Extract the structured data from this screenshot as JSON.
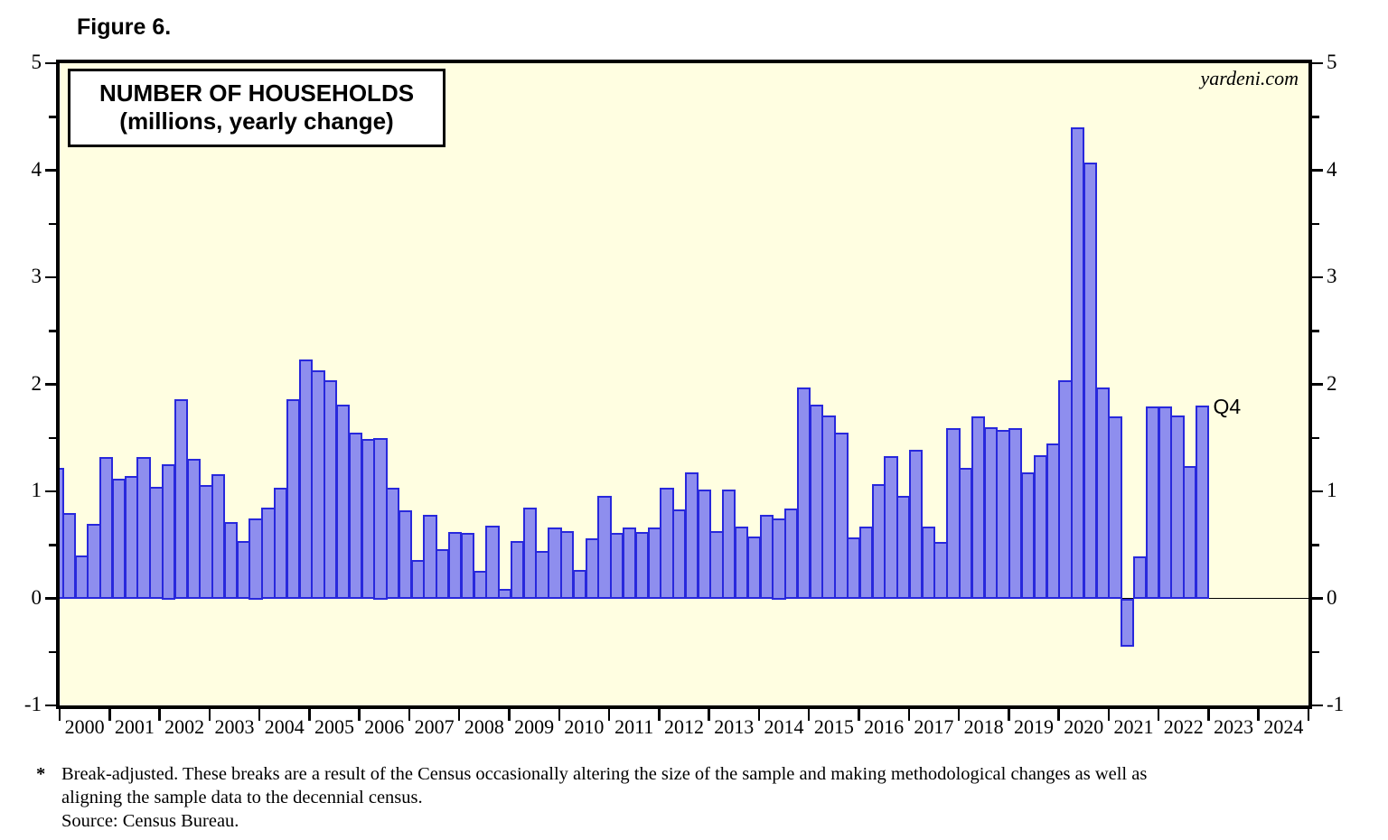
{
  "page": {
    "figure_label": "Figure 6."
  },
  "chart": {
    "title_line1": "NUMBER OF HOUSEHOLDS",
    "title_line2": "(millions, yearly change)",
    "watermark": "yardeni.com",
    "last_point_label": "Q4",
    "colors": {
      "plot_bg": "#fffee1",
      "bar_fill": "#8e8eee",
      "bar_border": "#2828dc",
      "frame": "#000000"
    }
  },
  "chart_data": {
    "type": "bar",
    "title": "NUMBER OF HOUSEHOLDS (millions, yearly change)",
    "ylabel": "millions, yearly change",
    "frequency": "quarterly",
    "ylim": [
      -1,
      5
    ],
    "y_major_ticks": [
      -1,
      0,
      1,
      2,
      3,
      4,
      5
    ],
    "y_minor_step": 0.5,
    "grid": false,
    "legend": "none",
    "x_year_labels": [
      "2000",
      "2001",
      "2002",
      "2003",
      "2004",
      "2005",
      "2006",
      "2007",
      "2008",
      "2009",
      "2010",
      "2011",
      "2012",
      "2013",
      "2014",
      "2015",
      "2016",
      "2017",
      "2018",
      "2019",
      "2020",
      "2021",
      "2022",
      "2023",
      "2024"
    ],
    "years_with_data": [
      "2000",
      "2001",
      "2002",
      "2003",
      "2004",
      "2005",
      "2006",
      "2007",
      "2008",
      "2009",
      "2010",
      "2011",
      "2012",
      "2013",
      "2014",
      "2015",
      "2016",
      "2017",
      "2018",
      "2019",
      "2020",
      "2021",
      "2022"
    ],
    "partial_first_bar": {
      "period": "1999 Q4 (clipped at left axis)",
      "value": 1.22
    },
    "series": [
      {
        "year": 2000,
        "values": [
          0.8,
          0.4,
          0.7,
          1.32
        ]
      },
      {
        "year": 2001,
        "values": [
          1.12,
          1.14,
          1.32,
          1.04
        ]
      },
      {
        "year": 2002,
        "values": [
          1.25,
          1.86,
          1.3,
          1.06
        ]
      },
      {
        "year": 2003,
        "values": [
          1.16,
          0.71,
          0.54,
          0.75
        ]
      },
      {
        "year": 2004,
        "values": [
          0.85,
          1.03,
          1.86,
          2.23
        ]
      },
      {
        "year": 2005,
        "values": [
          2.13,
          2.04,
          1.81,
          1.55
        ]
      },
      {
        "year": 2006,
        "values": [
          1.49,
          1.5,
          1.03,
          0.82
        ]
      },
      {
        "year": 2007,
        "values": [
          0.36,
          0.78,
          0.46,
          0.62
        ]
      },
      {
        "year": 2008,
        "values": [
          0.61,
          0.26,
          0.68,
          0.09
        ]
      },
      {
        "year": 2009,
        "values": [
          0.54,
          0.85,
          0.44,
          0.66
        ]
      },
      {
        "year": 2010,
        "values": [
          0.63,
          0.27,
          0.56,
          0.96
        ]
      },
      {
        "year": 2011,
        "values": [
          0.61,
          0.66,
          0.62,
          0.66
        ]
      },
      {
        "year": 2012,
        "values": [
          1.03,
          0.83,
          1.18,
          1.02
        ]
      },
      {
        "year": 2013,
        "values": [
          0.63,
          1.02,
          0.67,
          0.58
        ]
      },
      {
        "year": 2014,
        "values": [
          0.78,
          0.75,
          0.84,
          1.97
        ]
      },
      {
        "year": 2015,
        "values": [
          1.81,
          1.71,
          1.55,
          0.57
        ]
      },
      {
        "year": 2016,
        "values": [
          0.67,
          1.07,
          1.33,
          0.96
        ]
      },
      {
        "year": 2017,
        "values": [
          1.39,
          0.67,
          0.53,
          1.59
        ]
      },
      {
        "year": 2018,
        "values": [
          1.22,
          1.7,
          1.6,
          1.57
        ]
      },
      {
        "year": 2019,
        "values": [
          1.59,
          1.18,
          1.34,
          1.45
        ]
      },
      {
        "year": 2020,
        "values": [
          2.04,
          4.4,
          4.07,
          1.97
        ]
      },
      {
        "year": 2021,
        "values": [
          1.7,
          -0.45,
          0.39,
          1.79
        ]
      },
      {
        "year": 2022,
        "values": [
          1.79,
          1.71,
          1.24,
          1.8
        ]
      }
    ],
    "annotation": {
      "text": "Q4",
      "period": "2022 Q4",
      "value": 1.8
    }
  },
  "footnote": {
    "marker": "*",
    "line1": "Break-adjusted. These breaks are a result of the Census occasionally altering the size of the sample and making methodological changes as well as",
    "line2": "aligning the sample data to the decennial census.",
    "source": "Source: Census Bureau."
  }
}
